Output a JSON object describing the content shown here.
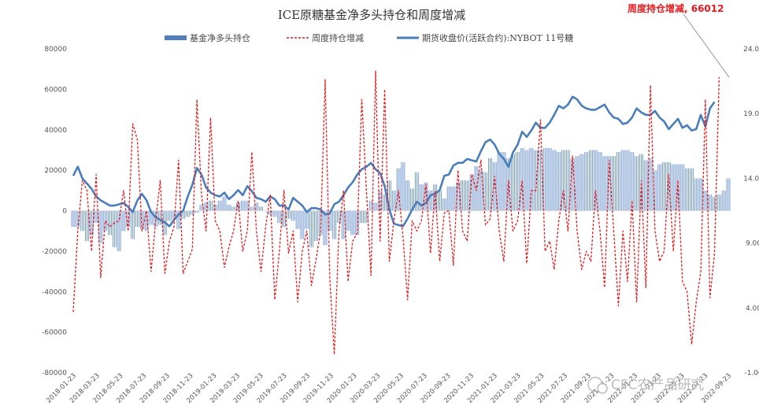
{
  "chart_data": {
    "type": "bar+line",
    "title": "ICE原糖基金净多头持仓和周度增减",
    "legend": [
      "基金净多头持仓",
      "周度持仓增减",
      "期货收盘价(活跃合约):NYBOT 11号糖"
    ],
    "legend_position": "top",
    "y_left_ticks": [
      "80000",
      "60000",
      "40000",
      "20000",
      "0",
      "-20000",
      "-40000",
      "-60000",
      "-80000"
    ],
    "y_left_lim": [
      -80000,
      80000
    ],
    "y_right_ticks": [
      "24.00",
      "19.00",
      "14.00",
      "9.00",
      "4.00",
      "-1.00"
    ],
    "y_right_lim": [
      -1,
      24
    ],
    "x_ticks": [
      "2018-01-23",
      "2018-03-23",
      "2018-05-23",
      "2018-07-23",
      "2018-09-23",
      "2018-11-23",
      "2019-01-23",
      "2019-03-23",
      "2019-05-23",
      "2019-07-23",
      "2019-09-23",
      "2019-11-23",
      "2020-01-23",
      "2020-03-23",
      "2020-05-23",
      "2020-07-23",
      "2020-09-23",
      "2020-11-23",
      "2021-01-23",
      "2021-03-23",
      "2021-05-23",
      "2021-07-23",
      "2021-09-23",
      "2021-11-23",
      "2022-01-23",
      "2022-03-23",
      "2022-05-23",
      "2022-07-23",
      "2022-09-23"
    ],
    "annotation": "周度持仓增减, 66012",
    "colors": {
      "net_long": "#4f7fbf",
      "weekly_change": "#e41a1c",
      "price": "#4a7ebb"
    },
    "grid": false,
    "series": [
      {
        "name": "基金净多头持仓",
        "kind": "bar",
        "axis": "left",
        "values": [
          -8000,
          -8000,
          -10000,
          -15000,
          -12000,
          -6000,
          -16000,
          -10000,
          -12000,
          -18000,
          -20000,
          -10000,
          -8000,
          -14000,
          -8000,
          -9000,
          -10000,
          -7000,
          -8000,
          -7000,
          -12000,
          -5000,
          -4000,
          -9000,
          -4000,
          -3000,
          -2000,
          -1000,
          3000,
          4000,
          5000,
          3000,
          5000,
          7000,
          3000,
          2000,
          4000,
          5000,
          5000,
          2000,
          4000,
          2000,
          0,
          -2000,
          -3000,
          -6000,
          -8000,
          -4000,
          -5000,
          -9000,
          -14000,
          -9000,
          -18000,
          -15000,
          -12000,
          -17000,
          -10000,
          -14000,
          -6000,
          -14000,
          -10000,
          -12000,
          -12000,
          -6000,
          -6000,
          5000,
          4000,
          10000,
          8000,
          15000,
          10000,
          21000,
          24000,
          15000,
          11000,
          19000,
          13000,
          14000,
          10000,
          13000,
          10000,
          6000,
          12000,
          12000,
          14000,
          15000,
          15000,
          18000,
          22000,
          20000,
          19000,
          26000,
          24000,
          29000,
          29000,
          26000,
          28000,
          29000,
          31000,
          30000,
          31000,
          30000,
          30000,
          31000,
          31000,
          30000,
          29000,
          30000,
          30000,
          26000,
          27000,
          28000,
          29000,
          30000,
          30000,
          29000,
          27000,
          27000,
          27000,
          29000,
          30000,
          30000,
          29000,
          27000,
          28000,
          25000,
          26000,
          20000,
          23000,
          24000,
          24000,
          23000,
          23000,
          23000,
          21000,
          21000,
          16000,
          16000,
          10000,
          8000,
          7000,
          8000,
          10000,
          16000
        ]
      },
      {
        "name": "周度持仓增减",
        "kind": "line",
        "axis": "left",
        "values": [
          -50000,
          -10000,
          15000,
          10000,
          -20000,
          18000,
          -33000,
          -5000,
          -8000,
          -6000,
          -5000,
          10000,
          -10000,
          43000,
          35000,
          -10000,
          0,
          -30000,
          -5000,
          15000,
          -31000,
          -15000,
          -8000,
          25000,
          -31000,
          -25000,
          -19000,
          55000,
          8000,
          -10000,
          46000,
          -5000,
          -10000,
          -28000,
          -18000,
          -10000,
          5000,
          -20000,
          -10000,
          29000,
          -10000,
          -30000,
          -8000,
          8000,
          -44000,
          -20000,
          10000,
          -21000,
          -10000,
          -45000,
          -20000,
          -10000,
          -37000,
          -24000,
          -10000,
          65000,
          -33000,
          -71000,
          -10000,
          10000,
          -35000,
          -15000,
          -11000,
          55000,
          10000,
          -32000,
          69000,
          -15000,
          60000,
          -25000,
          -5000,
          10000,
          -13000,
          -44000,
          -5000,
          -10000,
          -5000,
          13000,
          -21000,
          10000,
          -25000,
          -1000,
          0,
          -27000,
          20000,
          -10000,
          -15000,
          18000,
          10000,
          25000,
          -7000,
          -4000,
          17000,
          -10000,
          -25000,
          15000,
          -10000,
          -5000,
          15000,
          -26000,
          10000,
          10000,
          45000,
          -20000,
          -15000,
          -29000,
          -5000,
          10000,
          -10000,
          27000,
          -10000,
          -29000,
          -20000,
          -25000,
          10000,
          -10000,
          -38000,
          25000,
          -10000,
          -47000,
          -10000,
          -35000,
          5000,
          -45000,
          15000,
          -38000,
          62000,
          -10000,
          -25000,
          -20000,
          18000,
          -20000,
          15000,
          -35000,
          -40000,
          -66000,
          -45000,
          -30000,
          55000,
          -43000,
          -21000,
          66012
        ]
      },
      {
        "name": "期货收盘价(活跃合约):NYBOT 11号糖",
        "kind": "line",
        "axis": "right",
        "values": [
          14.2,
          14.9,
          14.0,
          13.6,
          13.2,
          12.6,
          12.3,
          12.1,
          11.9,
          11.9,
          12.0,
          12.1,
          11.8,
          11.4,
          12.3,
          12.8,
          12.3,
          11.4,
          11.0,
          10.8,
          10.6,
          10.3,
          10.8,
          11.2,
          11.5,
          12.6,
          13.5,
          14.8,
          14.3,
          13.3,
          12.9,
          12.7,
          12.6,
          12.9,
          12.4,
          12.7,
          13.1,
          12.7,
          13.4,
          13.0,
          12.5,
          12.4,
          12.2,
          12.6,
          12.4,
          11.9,
          11.9,
          11.6,
          12.5,
          12.2,
          11.9,
          11.4,
          11.7,
          11.7,
          11.6,
          11.2,
          11.3,
          12.0,
          12.2,
          12.7,
          13.3,
          13.7,
          14.3,
          14.7,
          14.9,
          15.2,
          14.7,
          14.4,
          13.4,
          11.6,
          10.5,
          10.4,
          10.3,
          10.9,
          11.6,
          12.2,
          11.9,
          12.1,
          12.7,
          12.8,
          13.1,
          14.2,
          14.3,
          15.0,
          15.2,
          15.2,
          15.5,
          15.4,
          15.3,
          16.1,
          16.8,
          17.0,
          16.6,
          15.9,
          15.5,
          14.9,
          16.0,
          16.6,
          17.6,
          17.2,
          17.7,
          18.3,
          17.9,
          17.9,
          18.3,
          18.9,
          19.6,
          19.4,
          19.7,
          20.3,
          20.1,
          19.6,
          19.4,
          19.3,
          19.3,
          19.5,
          19.7,
          19.1,
          18.7,
          18.6,
          18.2,
          18.3,
          18.7,
          19.4,
          19.1,
          18.9,
          18.9,
          19.2,
          18.7,
          18.4,
          17.8,
          18.2,
          18.6,
          17.9,
          18.1,
          17.7,
          17.8,
          18.9,
          18.0,
          19.4,
          19.9
        ]
      }
    ]
  },
  "watermark": "CFC农产品研究"
}
